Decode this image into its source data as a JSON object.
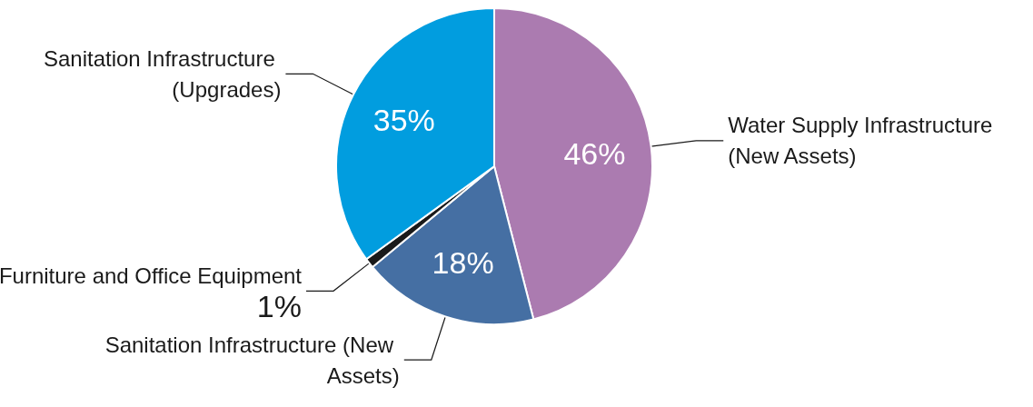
{
  "chart_data": {
    "type": "pie",
    "categories": [
      "Water Supply Infrastructure (New Assets)",
      "Sanitation Infrastructure (New Assets)",
      "Furniture and Office Equipment",
      "Sanitation Infrastructure (Upgrades)"
    ],
    "values": [
      46,
      18,
      1,
      35
    ],
    "colors": [
      "#ab7bb0",
      "#456fa3",
      "#1a1a1a",
      "#019ddf"
    ],
    "value_labels": [
      "46%",
      "18%",
      "1%",
      "35%"
    ]
  }
}
